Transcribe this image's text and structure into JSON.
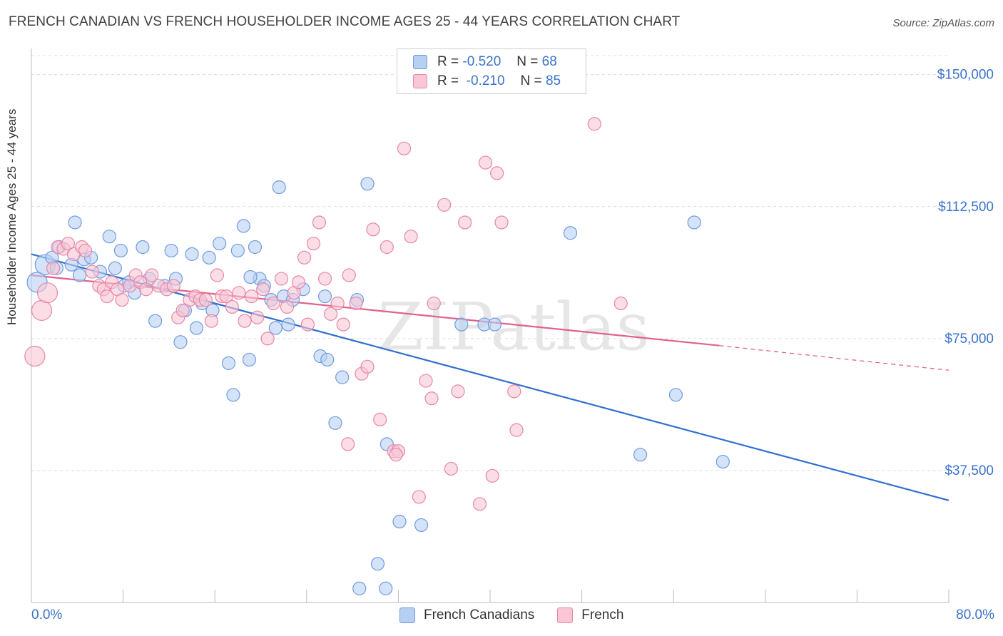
{
  "title": "FRENCH CANADIAN VS FRENCH HOUSEHOLDER INCOME AGES 25 - 44 YEARS CORRELATION CHART",
  "source": "Source: ZipAtlas.com",
  "watermark": "ZIPatlas",
  "legend": {
    "rows": [
      {
        "r_label": "R =",
        "r_value": "-0.520",
        "n_label": "N =",
        "n_value": "68",
        "color": "#b7d0f2",
        "border": "#6f9be0"
      },
      {
        "r_label": "R =",
        "r_value": "-0.210",
        "n_label": "N =",
        "n_value": "85",
        "color": "#f9c6d6",
        "border": "#e886a6"
      }
    ]
  },
  "bottom_legend": [
    "French Canadians",
    "French"
  ],
  "x_axis": {
    "min_label": "0.0%",
    "max_label": "80.0%"
  },
  "chart_data": {
    "type": "scatter",
    "title": "FRENCH CANADIAN VS FRENCH HOUSEHOLDER INCOME AGES 25 - 44 YEARS CORRELATION CHART",
    "xlabel": "",
    "ylabel": "Householder Income Ages 25 - 44 years",
    "xlim": [
      0,
      80
    ],
    "ylim": [
      0,
      155000
    ],
    "y_ticks": [
      {
        "value": 37500,
        "label": "$37,500"
      },
      {
        "value": 75000,
        "label": "$75,000"
      },
      {
        "value": 112500,
        "label": "$112,500"
      },
      {
        "value": 150000,
        "label": "$150,000"
      }
    ],
    "grid": true,
    "series": [
      {
        "name": "French Canadians",
        "color": "#6f9be0",
        "fill": "#b7d0f2",
        "trend": {
          "x0": 0,
          "y0": 99000,
          "x1": 80,
          "y1": 29000,
          "color": "#2f6fcf"
        },
        "points": [
          [
            0.5,
            91000
          ],
          [
            1.2,
            96000
          ],
          [
            1.8,
            98000
          ],
          [
            2.2,
            95000
          ],
          [
            2.4,
            101000
          ],
          [
            3.5,
            96000
          ],
          [
            3.8,
            108000
          ],
          [
            4.2,
            93000
          ],
          [
            4.6,
            97500
          ],
          [
            5.2,
            98000
          ],
          [
            6.0,
            94000
          ],
          [
            6.8,
            104000
          ],
          [
            7.3,
            95000
          ],
          [
            7.8,
            100000
          ],
          [
            8.5,
            91000
          ],
          [
            9.0,
            88000
          ],
          [
            9.7,
            101000
          ],
          [
            10.3,
            92000
          ],
          [
            10.8,
            80000
          ],
          [
            11.6,
            90000
          ],
          [
            12.2,
            100000
          ],
          [
            12.6,
            92000
          ],
          [
            13.0,
            74000
          ],
          [
            13.4,
            83000
          ],
          [
            14.0,
            99000
          ],
          [
            14.4,
            78000
          ],
          [
            14.9,
            85000
          ],
          [
            15.5,
            98000
          ],
          [
            15.8,
            83000
          ],
          [
            16.4,
            102000
          ],
          [
            17.2,
            68000
          ],
          [
            17.6,
            59000
          ],
          [
            18.0,
            100000
          ],
          [
            18.5,
            107000
          ],
          [
            19.0,
            69000
          ],
          [
            19.5,
            101000
          ],
          [
            19.9,
            92000
          ],
          [
            20.3,
            90000
          ],
          [
            20.9,
            86000
          ],
          [
            21.3,
            78000
          ],
          [
            21.6,
            118000
          ],
          [
            22.0,
            87000
          ],
          [
            22.4,
            79000
          ],
          [
            22.8,
            86000
          ],
          [
            23.7,
            89000
          ],
          [
            25.2,
            70000
          ],
          [
            25.6,
            87000
          ],
          [
            25.8,
            69000
          ],
          [
            26.5,
            51000
          ],
          [
            27.1,
            64000
          ],
          [
            28.4,
            86000
          ],
          [
            28.6,
            4000
          ],
          [
            29.3,
            119000
          ],
          [
            30.9,
            4000
          ],
          [
            31.0,
            45000
          ],
          [
            32.1,
            23000
          ],
          [
            34.0,
            22000
          ],
          [
            37.5,
            79000
          ],
          [
            39.5,
            79000
          ],
          [
            40.4,
            79000
          ],
          [
            47.0,
            105000
          ],
          [
            53.1,
            42000
          ],
          [
            56.2,
            59000
          ],
          [
            57.8,
            108000
          ],
          [
            60.3,
            40000
          ],
          [
            30.2,
            11000
          ],
          [
            8.1,
            90000
          ],
          [
            19.1,
            92500
          ]
        ]
      },
      {
        "name": "French",
        "color": "#e886a6",
        "fill": "#f9c6d6",
        "trend": {
          "x0": 0,
          "y0": 93000,
          "x1": 60,
          "y1": 73000,
          "color": "#e0628a"
        },
        "dashed_extension": {
          "x0": 60,
          "y0": 73000,
          "x1": 80,
          "y1": 66000
        },
        "points": [
          [
            0.3,
            70000
          ],
          [
            0.9,
            83000
          ],
          [
            1.4,
            88000
          ],
          [
            1.9,
            95000
          ],
          [
            2.3,
            101000
          ],
          [
            2.8,
            100500
          ],
          [
            3.2,
            102000
          ],
          [
            3.7,
            99000
          ],
          [
            4.4,
            101000
          ],
          [
            4.7,
            100000
          ],
          [
            5.3,
            94000
          ],
          [
            5.9,
            90000
          ],
          [
            6.3,
            89000
          ],
          [
            6.6,
            87000
          ],
          [
            7.0,
            91000
          ],
          [
            7.5,
            89000
          ],
          [
            7.9,
            86000
          ],
          [
            8.6,
            90000
          ],
          [
            9.1,
            93000
          ],
          [
            9.5,
            91000
          ],
          [
            10.0,
            89000
          ],
          [
            10.5,
            93000
          ],
          [
            11.1,
            90000
          ],
          [
            11.8,
            89000
          ],
          [
            12.4,
            90000
          ],
          [
            12.8,
            81000
          ],
          [
            13.2,
            83000
          ],
          [
            13.8,
            86000
          ],
          [
            14.3,
            87000
          ],
          [
            14.7,
            86000
          ],
          [
            15.2,
            86000
          ],
          [
            15.7,
            80000
          ],
          [
            16.2,
            93000
          ],
          [
            16.6,
            87000
          ],
          [
            17.0,
            87000
          ],
          [
            17.5,
            84000
          ],
          [
            18.1,
            88000
          ],
          [
            18.6,
            80000
          ],
          [
            19.2,
            87000
          ],
          [
            19.7,
            81000
          ],
          [
            20.2,
            89000
          ],
          [
            20.6,
            75000
          ],
          [
            21.1,
            85000
          ],
          [
            21.8,
            92000
          ],
          [
            22.3,
            84000
          ],
          [
            22.9,
            88000
          ],
          [
            23.3,
            91000
          ],
          [
            23.8,
            98000
          ],
          [
            24.1,
            79000
          ],
          [
            24.6,
            102000
          ],
          [
            25.1,
            108000
          ],
          [
            25.6,
            92000
          ],
          [
            26.1,
            82000
          ],
          [
            26.7,
            85000
          ],
          [
            27.2,
            79000
          ],
          [
            27.7,
            93000
          ],
          [
            28.3,
            85000
          ],
          [
            28.8,
            65000
          ],
          [
            29.3,
            67000
          ],
          [
            29.8,
            106000
          ],
          [
            30.4,
            52000
          ],
          [
            31.0,
            101000
          ],
          [
            31.6,
            43000
          ],
          [
            32.0,
            43000
          ],
          [
            32.5,
            129000
          ],
          [
            33.1,
            104000
          ],
          [
            33.8,
            30000
          ],
          [
            34.4,
            63000
          ],
          [
            34.9,
            58000
          ],
          [
            35.1,
            85000
          ],
          [
            36.0,
            113000
          ],
          [
            36.6,
            38000
          ],
          [
            37.2,
            60000
          ],
          [
            37.8,
            108000
          ],
          [
            39.1,
            28000
          ],
          [
            39.6,
            125000
          ],
          [
            40.2,
            36000
          ],
          [
            40.6,
            122000
          ],
          [
            41.0,
            108000
          ],
          [
            42.1,
            60000
          ],
          [
            42.3,
            49000
          ],
          [
            49.1,
            136000
          ],
          [
            51.4,
            85000
          ],
          [
            31.8,
            42000
          ],
          [
            27.6,
            45000
          ]
        ]
      }
    ]
  }
}
